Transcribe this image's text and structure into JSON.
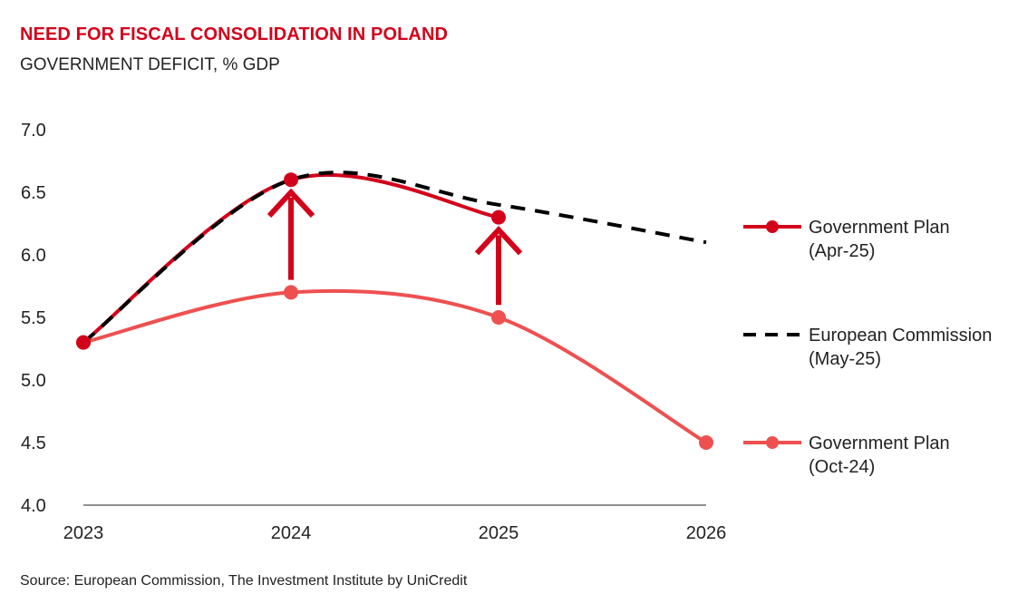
{
  "chart_data": {
    "type": "line",
    "title": "NEED FOR FISCAL CONSOLIDATION IN POLAND",
    "subtitle": "GOVERNMENT DEFICIT, % GDP",
    "source": "Source: European Commission, The Investment Institute by UniCredit",
    "x": [
      "2023",
      "2024",
      "2025",
      "2026"
    ],
    "ylim": [
      4.0,
      7.0
    ],
    "yticks": [
      "7.0",
      "6.5",
      "6.0",
      "5.5",
      "5.0",
      "4.5",
      "4.0"
    ],
    "grid": false,
    "legend_position": "right",
    "series": [
      {
        "key": "gov_apr25",
        "name_lines": [
          "Government Plan",
          "(Apr-25)"
        ],
        "values": [
          5.3,
          6.6,
          6.3,
          null
        ],
        "color": "#d3021b",
        "style": "solid-markers"
      },
      {
        "key": "ec_may25",
        "name_lines": [
          "European Commission",
          "(May-25)"
        ],
        "values": [
          5.3,
          6.6,
          6.4,
          6.1
        ],
        "color": "#000000",
        "style": "dashed"
      },
      {
        "key": "gov_oct24",
        "name_lines": [
          "Government Plan",
          "(Oct-24)"
        ],
        "values": [
          5.3,
          5.7,
          5.5,
          4.5
        ],
        "color": "#ee5050",
        "style": "solid-markers"
      }
    ],
    "annotations": [
      {
        "type": "arrow-up",
        "x": "2024",
        "from": 5.8,
        "to": 6.5,
        "color": "#d3021b"
      },
      {
        "type": "arrow-up",
        "x": "2025",
        "from": 5.6,
        "to": 6.2,
        "color": "#d3021b"
      }
    ]
  }
}
